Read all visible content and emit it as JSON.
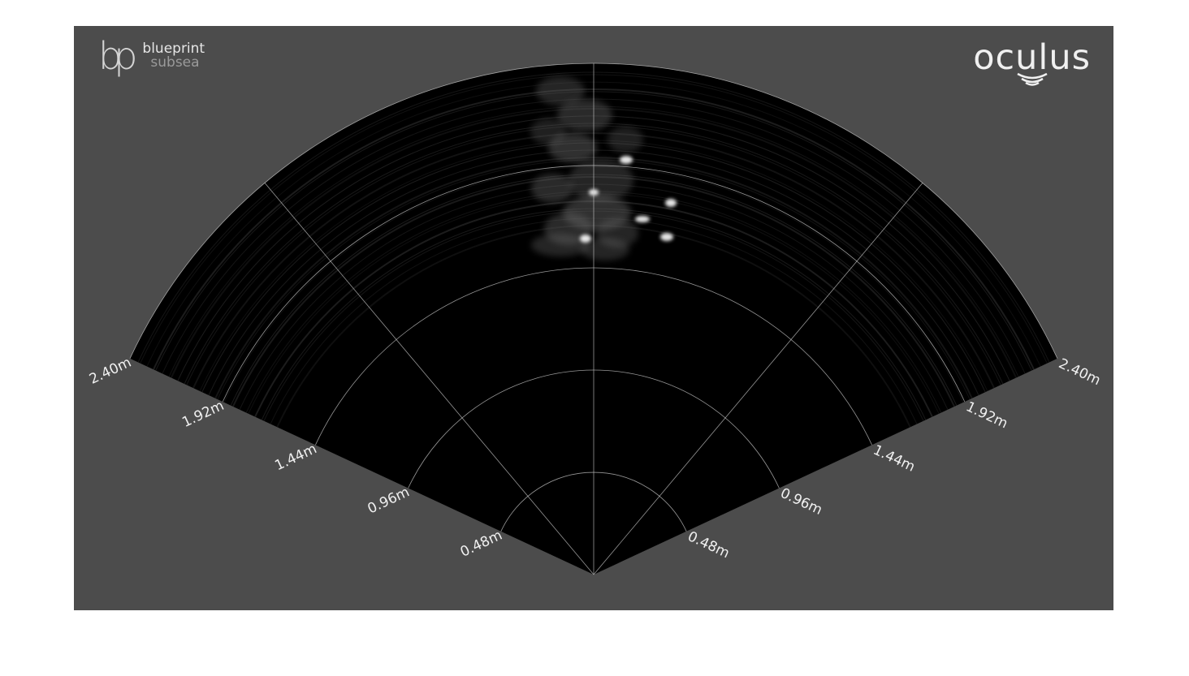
{
  "logos": {
    "left": {
      "glyph": "bp",
      "line1": "blueprint",
      "line2": "subsea"
    },
    "right": {
      "name": "oculus",
      "icon": "sound-wave-icon"
    }
  },
  "sonar": {
    "range_rings_m": [
      0.48,
      0.96,
      1.44,
      1.92,
      2.4
    ],
    "ring_labels": [
      "0.48m",
      "0.96m",
      "1.44m",
      "1.92m",
      "2.40m"
    ],
    "max_range_m": 2.4,
    "field_of_view_deg": 130,
    "bearing_lines_deg": [
      -40,
      0,
      40
    ],
    "colors": {
      "background": "#4c4c4c",
      "fan": "#000000",
      "grid": "#c8c8c8",
      "label": "#f0f0f0"
    }
  }
}
